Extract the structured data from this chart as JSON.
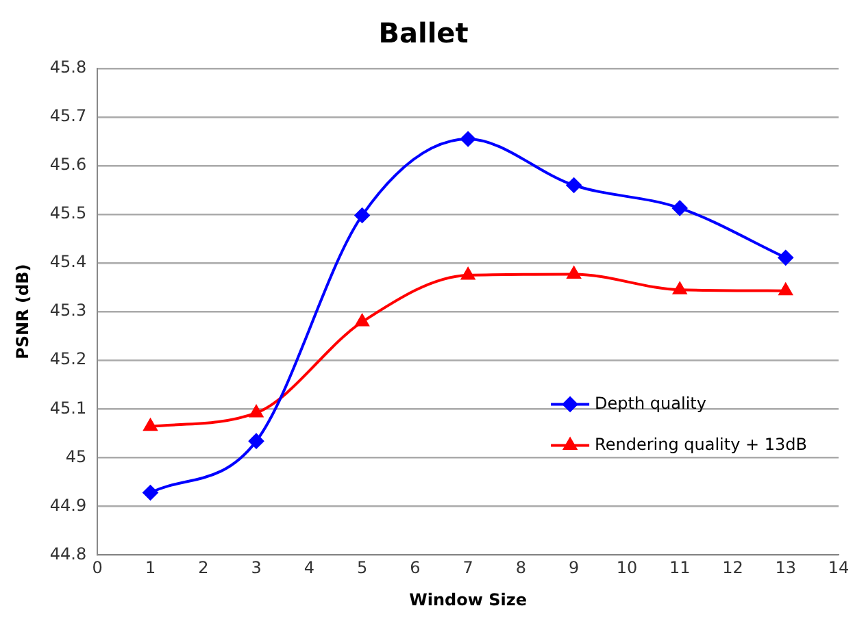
{
  "chart_data": {
    "type": "line",
    "title": "Ballet",
    "xlabel": "Window Size",
    "ylabel": "PSNR (dB)",
    "x": [
      1,
      3,
      5,
      7,
      9,
      11,
      13
    ],
    "series": [
      {
        "name": "Depth quality",
        "color": "#0000ff",
        "marker": "diamond",
        "values": [
          44.928,
          45.034,
          45.498,
          45.655,
          45.56,
          45.513,
          45.411
        ]
      },
      {
        "name": "Rendering quality + 13dB",
        "color": "#ff0000",
        "marker": "triangle",
        "values": [
          45.064,
          45.092,
          45.279,
          45.375,
          45.377,
          45.345,
          45.343
        ]
      }
    ],
    "xlim": [
      0,
      14
    ],
    "xticks": [
      0,
      1,
      2,
      3,
      4,
      5,
      6,
      7,
      8,
      9,
      10,
      11,
      12,
      13,
      14
    ],
    "ylim": [
      44.8,
      45.8
    ],
    "yticks": [
      44.8,
      44.9,
      45,
      45.1,
      45.2,
      45.3,
      45.4,
      45.5,
      45.6,
      45.7,
      45.8
    ],
    "grid": "y",
    "legend": "bottom right",
    "line_style": "solid"
  }
}
